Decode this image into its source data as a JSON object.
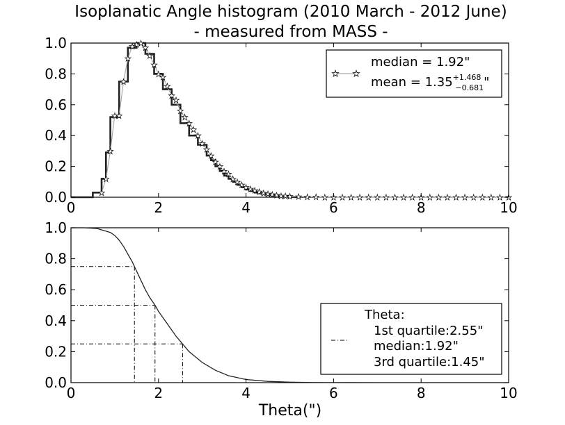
{
  "title": {
    "line1": "Isoplanatic Angle histogram (2010 March - 2012 June)",
    "line2": "- measured from MASS -"
  },
  "chart_data": [
    {
      "type": "line",
      "subtype": "histogram-step-with-markers",
      "xlim": [
        0,
        10
      ],
      "ylim": [
        0,
        1.0
      ],
      "x_ticks": [
        "0",
        "2",
        "4",
        "6",
        "8",
        "10"
      ],
      "y_ticks": [
        "0.0",
        "0.2",
        "0.4",
        "0.6",
        "0.8",
        "1.0"
      ],
      "xlabel": "",
      "ylabel": "",
      "grid": false,
      "legend_position": "top-right",
      "legend": {
        "median_label": "median = 1.92\"",
        "mean_label": "mean = 1.35",
        "mean_sup": "+1.468",
        "mean_sub": "−0.681",
        "mean_suffix": "\""
      },
      "series": [
        {
          "name": "histogram",
          "style": "steps",
          "color": "#222222",
          "x": [
            0.0,
            0.1,
            0.2,
            0.3,
            0.4,
            0.5,
            0.6,
            0.7,
            0.8,
            0.9,
            1.0,
            1.1,
            1.2,
            1.3,
            1.4,
            1.5,
            1.6,
            1.7,
            1.8,
            1.9,
            2.0,
            2.1,
            2.2,
            2.3,
            2.4,
            2.5,
            2.6,
            2.7,
            2.8,
            2.9,
            3.0,
            3.1,
            3.2,
            3.3,
            3.4,
            3.5,
            3.6,
            3.7,
            3.8,
            3.9,
            4.0,
            4.1,
            4.2,
            4.3,
            4.4,
            4.5,
            4.6,
            4.7,
            4.8,
            4.9,
            5.0,
            5.1,
            5.2
          ],
          "values": [
            0,
            0,
            0,
            0,
            0,
            0.03,
            0.03,
            0.12,
            0.29,
            0.52,
            0.52,
            0.75,
            0.75,
            0.97,
            0.97,
            1.0,
            1.0,
            0.93,
            0.93,
            0.8,
            0.8,
            0.7,
            0.7,
            0.6,
            0.6,
            0.48,
            0.48,
            0.4,
            0.4,
            0.34,
            0.34,
            0.27,
            0.24,
            0.2,
            0.17,
            0.14,
            0.12,
            0.1,
            0.08,
            0.065,
            0.05,
            0.04,
            0.03,
            0.025,
            0.02,
            0.015,
            0.01,
            0.008,
            0.005,
            0.003,
            0.002,
            0.001,
            0
          ]
        },
        {
          "name": "",
          "style": "line+star-markers",
          "color": "#aaaaaa",
          "x": [
            0.7,
            0.8,
            0.9,
            1.0,
            1.1,
            1.2,
            1.3,
            1.4,
            1.5,
            1.6,
            1.7,
            1.8,
            1.9,
            2.0,
            2.1,
            2.2,
            2.3,
            2.4,
            2.5,
            2.6,
            2.7,
            2.8,
            2.9,
            3.0,
            3.1,
            3.2,
            3.3,
            3.4,
            3.5,
            3.6,
            3.7,
            3.8,
            3.9,
            4.0,
            4.1,
            4.2,
            4.3,
            4.4,
            4.5,
            4.6,
            4.7,
            4.8,
            4.9,
            5.0,
            5.2,
            5.4,
            5.6,
            5.8,
            6.0,
            6.2,
            6.4,
            6.6,
            6.8,
            7.0,
            7.2,
            7.4,
            7.6,
            7.8,
            8.0,
            8.2,
            8.4,
            8.6,
            8.8,
            9.0,
            9.2,
            9.4,
            9.6,
            9.8,
            10.0
          ],
          "values": [
            0.03,
            0.12,
            0.3,
            0.53,
            0.53,
            0.75,
            0.9,
            0.98,
            0.99,
            1.0,
            0.97,
            0.92,
            0.86,
            0.8,
            0.78,
            0.72,
            0.66,
            0.63,
            0.56,
            0.52,
            0.48,
            0.44,
            0.4,
            0.35,
            0.31,
            0.27,
            0.23,
            0.2,
            0.17,
            0.15,
            0.12,
            0.1,
            0.08,
            0.065,
            0.055,
            0.045,
            0.035,
            0.028,
            0.022,
            0.017,
            0.013,
            0.01,
            0.008,
            0.006,
            0.004,
            0.003,
            0.002,
            0.001,
            0.001,
            0,
            0,
            0,
            0,
            0,
            0,
            0,
            0,
            0,
            0,
            0,
            0,
            0,
            0,
            0,
            0,
            0,
            0,
            0,
            0
          ]
        }
      ]
    },
    {
      "type": "line",
      "subtype": "cumulative-with-quartile-guides",
      "xlim": [
        0,
        10
      ],
      "ylim": [
        0,
        1.0
      ],
      "x_ticks": [
        "0",
        "2",
        "4",
        "6",
        "8",
        "10"
      ],
      "y_ticks": [
        "0.0",
        "0.2",
        "0.4",
        "0.6",
        "0.8",
        "1.0"
      ],
      "xlabel": "Theta(\")",
      "ylabel": "",
      "grid": false,
      "legend_position": "bottom-right",
      "legend": {
        "title": "Theta:",
        "lines": [
          "1st quartile:2.55\"",
          "median:1.92\"",
          "3rd quartile:1.45\""
        ]
      },
      "series": [
        {
          "name": "",
          "color": "#222222",
          "x": [
            0,
            0.3,
            0.6,
            0.9,
            1.0,
            1.1,
            1.2,
            1.3,
            1.4,
            1.45,
            1.5,
            1.6,
            1.7,
            1.8,
            1.92,
            2.0,
            2.2,
            2.4,
            2.55,
            2.7,
            3.0,
            3.3,
            3.6,
            4.0,
            4.5,
            5.0,
            5.5,
            6.0,
            7.0,
            8.0,
            9.0,
            10.0
          ],
          "values": [
            1.0,
            1.0,
            0.995,
            0.97,
            0.95,
            0.92,
            0.88,
            0.83,
            0.78,
            0.75,
            0.72,
            0.66,
            0.6,
            0.55,
            0.5,
            0.46,
            0.38,
            0.3,
            0.25,
            0.2,
            0.13,
            0.08,
            0.045,
            0.02,
            0.008,
            0.003,
            0.001,
            0.0005,
            0,
            0,
            0,
            0
          ]
        }
      ],
      "quartile_guides": [
        {
          "x": 1.45,
          "y": 0.75
        },
        {
          "x": 1.92,
          "y": 0.5
        },
        {
          "x": 2.55,
          "y": 0.25
        }
      ]
    }
  ]
}
